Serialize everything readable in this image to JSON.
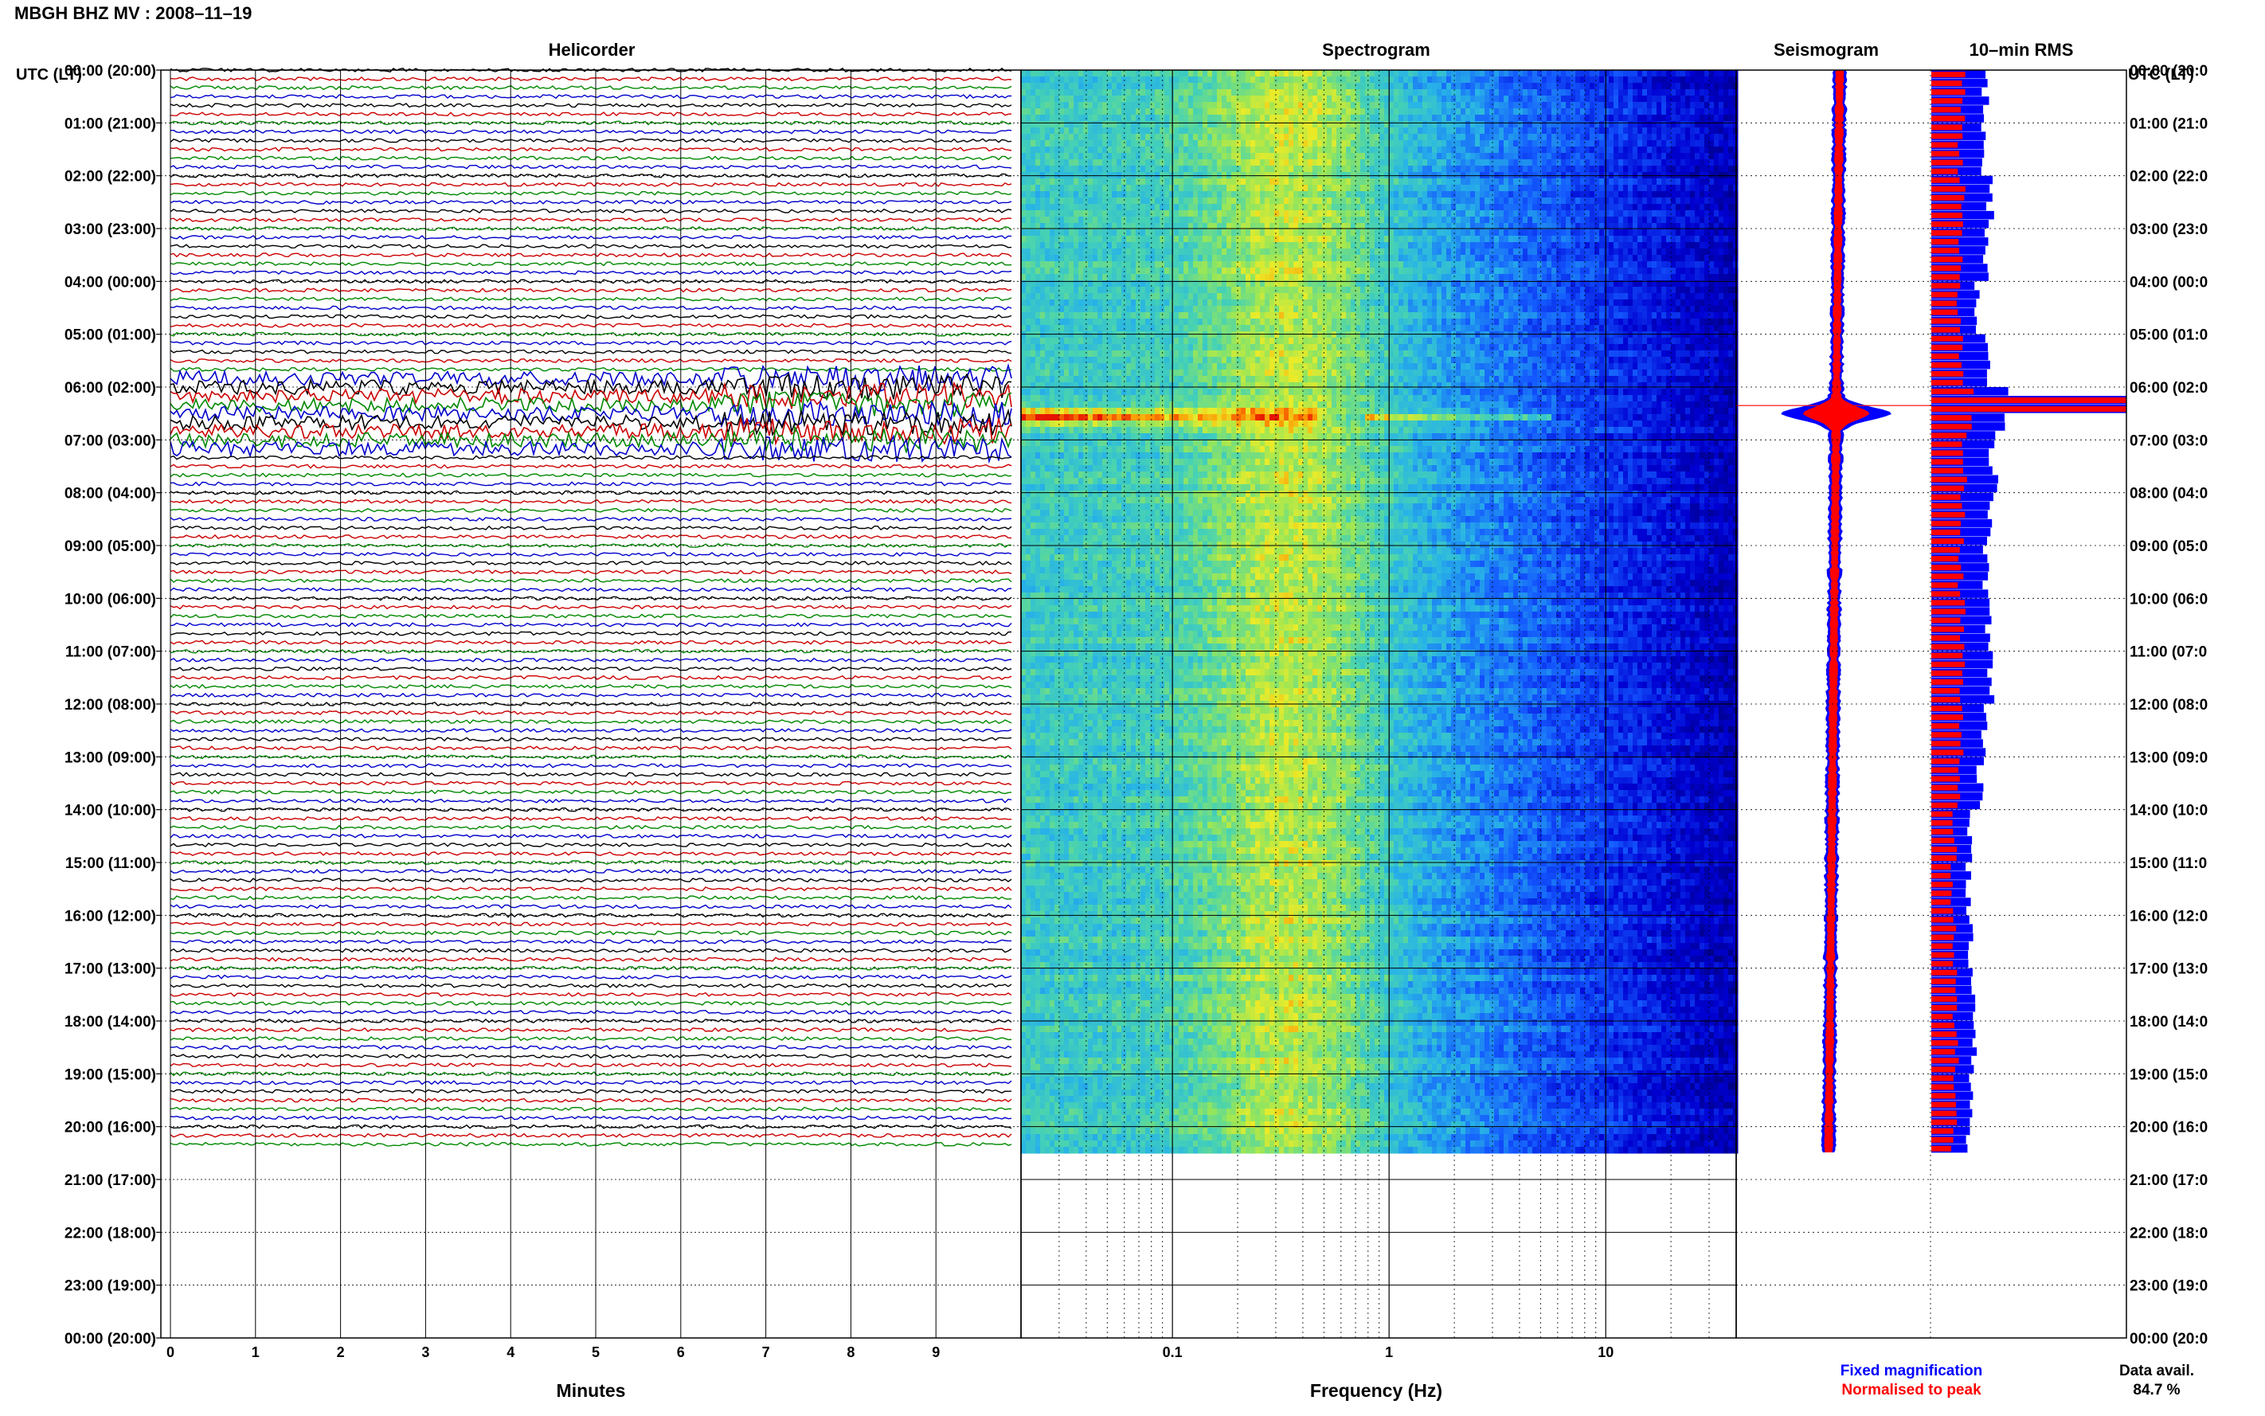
{
  "title": "MBGH BHZ MV : 2008–11–19",
  "utc_header": "UTC (LT)",
  "panels": {
    "helicorder": "Helicorder",
    "spectrogram": "Spectrogram",
    "seismogram": "Seismogram",
    "rms": "10–min RMS"
  },
  "hour_labels": [
    "00:00 (20:00)",
    "01:00 (21:00)",
    "02:00 (22:00)",
    "03:00 (23:00)",
    "04:00 (00:00)",
    "05:00 (01:00)",
    "06:00 (02:00)",
    "07:00 (03:00)",
    "08:00 (04:00)",
    "09:00 (05:00)",
    "10:00 (06:00)",
    "11:00 (07:00)",
    "12:00 (08:00)",
    "13:00 (09:00)",
    "14:00 (10:00)",
    "15:00 (11:00)",
    "16:00 (12:00)",
    "17:00 (13:00)",
    "18:00 (14:00)",
    "19:00 (15:00)",
    "20:00 (16:00)",
    "21:00 (17:00)",
    "22:00 (18:00)",
    "23:00 (19:00)",
    "00:00 (20:00)"
  ],
  "right_hour_labels": [
    "00:00 (20:0",
    "01:00 (21:0",
    "02:00 (22:0",
    "03:00 (23:0",
    "04:00 (00:0",
    "05:00 (01:0",
    "06:00 (02:0",
    "07:00 (03:0",
    "08:00 (04:0",
    "09:00 (05:0",
    "10:00 (06:0",
    "11:00 (07:0",
    "12:00 (08:0",
    "13:00 (09:0",
    "14:00 (10:0",
    "15:00 (11:0",
    "16:00 (12:0",
    "17:00 (13:0",
    "18:00 (14:0",
    "19:00 (15:0",
    "20:00 (16:0",
    "21:00 (17:0",
    "22:00 (18:0",
    "23:00 (19:0",
    "00:00 (20:0"
  ],
  "helicorder_xticks": [
    "0",
    "1",
    "2",
    "3",
    "4",
    "5",
    "6",
    "7",
    "8",
    "9"
  ],
  "helicorder_xlabel": "Minutes",
  "spectrogram_xticks": [
    "0.1",
    "1",
    "10"
  ],
  "spectrogram_xlabel": "Frequency (Hz)",
  "legend": {
    "fixed": "Fixed magnification",
    "normalised": "Normalised to peak"
  },
  "legend_colors": {
    "fixed": "#0000ff",
    "normalised": "#ff0000"
  },
  "data_avail": {
    "label": "Data avail.",
    "value": "84.7 %"
  },
  "trace_colors": [
    "#000000",
    "#cc0000",
    "#008800",
    "#0000cc"
  ],
  "chart_data": {
    "type": "heatmap",
    "title": "MBGH BHZ MV : 2008–11–19",
    "hours_covered": 20.5,
    "event_hour": 6.5,
    "rms_hourly": [
      {
        "hour": "00:00",
        "fixed": 0.28,
        "normalised": 0.16
      },
      {
        "hour": "01:00",
        "fixed": 0.27,
        "normalised": 0.15
      },
      {
        "hour": "02:00",
        "fixed": 0.3,
        "normalised": 0.16
      },
      {
        "hour": "03:00",
        "fixed": 0.28,
        "normalised": 0.15
      },
      {
        "hour": "04:00",
        "fixed": 0.24,
        "normalised": 0.14
      },
      {
        "hour": "05:00",
        "fixed": 0.29,
        "normalised": 0.15
      },
      {
        "hour": "06:00",
        "fixed": 1.0,
        "normalised": 1.0
      },
      {
        "hour": "07:00",
        "fixed": 0.32,
        "normalised": 0.17
      },
      {
        "hour": "08:00",
        "fixed": 0.3,
        "normalised": 0.16
      },
      {
        "hour": "09:00",
        "fixed": 0.28,
        "normalised": 0.15
      },
      {
        "hour": "10:00",
        "fixed": 0.3,
        "normalised": 0.16
      },
      {
        "hour": "11:00",
        "fixed": 0.31,
        "normalised": 0.16
      },
      {
        "hour": "12:00",
        "fixed": 0.27,
        "normalised": 0.15
      },
      {
        "hour": "13:00",
        "fixed": 0.25,
        "normalised": 0.14
      },
      {
        "hour": "14:00",
        "fixed": 0.2,
        "normalised": 0.12
      },
      {
        "hour": "15:00",
        "fixed": 0.19,
        "normalised": 0.11
      },
      {
        "hour": "16:00",
        "fixed": 0.2,
        "normalised": 0.12
      },
      {
        "hour": "17:00",
        "fixed": 0.21,
        "normalised": 0.12
      },
      {
        "hour": "18:00",
        "fixed": 0.22,
        "normalised": 0.13
      },
      {
        "hour": "19:00",
        "fixed": 0.2,
        "normalised": 0.12
      },
      {
        "hour": "20:00",
        "fixed": 0.19,
        "normalised": 0.11
      }
    ],
    "spectrogram_freq_range_hz": [
      0.02,
      40
    ]
  }
}
